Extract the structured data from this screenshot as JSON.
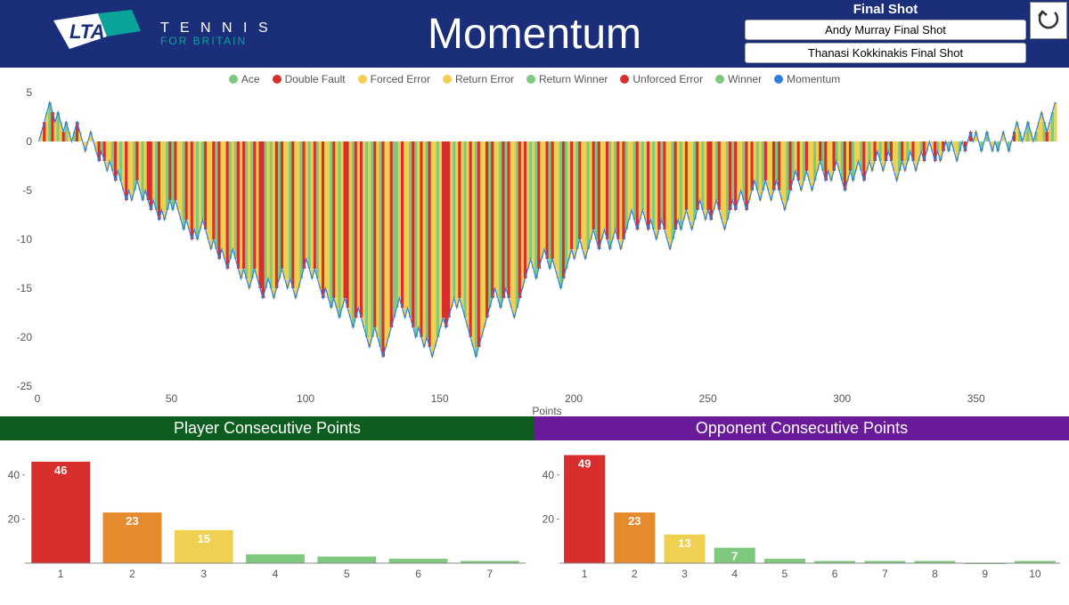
{
  "header": {
    "logo_tennis": "T E N N I S",
    "logo_britain": "FOR BRITAIN",
    "title": "Momentum",
    "final_shot_header": "Final Shot",
    "final_shot_buttons": [
      "Andy Murray Final Shot",
      "Thanasi Kokkinakis Final Shot"
    ]
  },
  "legend": {
    "items": [
      {
        "label": "Ace",
        "color": "#7fc97f"
      },
      {
        "label": "Double Fault",
        "color": "#d92e2e"
      },
      {
        "label": "Forced Error",
        "color": "#f0d050"
      },
      {
        "label": "Return Error",
        "color": "#f0d050"
      },
      {
        "label": "Return Winner",
        "color": "#7fc97f"
      },
      {
        "label": "Unforced Error",
        "color": "#d92e2e"
      },
      {
        "label": "Winner",
        "color": "#7fc97f"
      },
      {
        "label": "Momentum",
        "color": "#2e7fd9"
      }
    ]
  },
  "momentum_chart": {
    "type": "line_with_bars",
    "ylim": [
      -25,
      5
    ],
    "ytick_step": 5,
    "xlim": [
      0,
      380
    ],
    "xtick_step": 50,
    "x_title": "Points",
    "background_color": "#ffffff",
    "line_color": "#2e7fd9",
    "line_width": 1.2,
    "bar_palette": {
      "g": "#7fc97f",
      "y": "#f0d050",
      "r": "#d92e2e"
    },
    "axis_color": "#888888",
    "label_color": "#555555",
    "label_fontsize": 12,
    "momentum": [
      0,
      1,
      2,
      3,
      4,
      3,
      2,
      3,
      2,
      1,
      2,
      1,
      0,
      1,
      2,
      1,
      0,
      -1,
      0,
      1,
      0,
      -1,
      -2,
      -1,
      -2,
      -3,
      -2,
      -3,
      -4,
      -3,
      -4,
      -5,
      -6,
      -5,
      -6,
      -5,
      -4,
      -5,
      -6,
      -5,
      -6,
      -7,
      -6,
      -7,
      -8,
      -7,
      -8,
      -7,
      -6,
      -7,
      -6,
      -7,
      -8,
      -9,
      -8,
      -9,
      -10,
      -9,
      -10,
      -9,
      -8,
      -9,
      -10,
      -11,
      -10,
      -11,
      -12,
      -11,
      -12,
      -13,
      -12,
      -11,
      -12,
      -13,
      -14,
      -13,
      -14,
      -15,
      -14,
      -13,
      -14,
      -15,
      -16,
      -15,
      -14,
      -15,
      -16,
      -15,
      -14,
      -13,
      -14,
      -15,
      -14,
      -15,
      -16,
      -15,
      -14,
      -13,
      -12,
      -13,
      -14,
      -13,
      -14,
      -15,
      -16,
      -15,
      -16,
      -17,
      -16,
      -17,
      -18,
      -17,
      -16,
      -17,
      -18,
      -19,
      -18,
      -17,
      -18,
      -19,
      -20,
      -21,
      -20,
      -19,
      -20,
      -21,
      -22,
      -21,
      -20,
      -19,
      -18,
      -17,
      -16,
      -17,
      -18,
      -17,
      -18,
      -19,
      -20,
      -19,
      -20,
      -21,
      -20,
      -21,
      -22,
      -21,
      -20,
      -19,
      -18,
      -19,
      -18,
      -17,
      -16,
      -17,
      -16,
      -17,
      -18,
      -19,
      -20,
      -21,
      -22,
      -21,
      -20,
      -19,
      -18,
      -17,
      -16,
      -15,
      -16,
      -17,
      -16,
      -15,
      -16,
      -17,
      -18,
      -17,
      -16,
      -15,
      -14,
      -13,
      -12,
      -13,
      -14,
      -13,
      -12,
      -11,
      -12,
      -13,
      -12,
      -13,
      -14,
      -15,
      -14,
      -13,
      -12,
      -11,
      -12,
      -11,
      -10,
      -11,
      -12,
      -11,
      -10,
      -9,
      -10,
      -11,
      -10,
      -9,
      -10,
      -11,
      -10,
      -9,
      -10,
      -11,
      -10,
      -9,
      -8,
      -7,
      -8,
      -9,
      -8,
      -7,
      -8,
      -9,
      -8,
      -9,
      -10,
      -9,
      -8,
      -9,
      -10,
      -11,
      -10,
      -9,
      -8,
      -9,
      -8,
      -7,
      -8,
      -9,
      -8,
      -7,
      -6,
      -7,
      -8,
      -7,
      -8,
      -7,
      -6,
      -7,
      -8,
      -9,
      -8,
      -7,
      -6,
      -7,
      -6,
      -5,
      -6,
      -7,
      -6,
      -5,
      -4,
      -5,
      -6,
      -5,
      -4,
      -5,
      -6,
      -5,
      -4,
      -5,
      -6,
      -7,
      -6,
      -5,
      -4,
      -3,
      -4,
      -5,
      -4,
      -3,
      -4,
      -5,
      -4,
      -3,
      -2,
      -3,
      -4,
      -3,
      -4,
      -3,
      -2,
      -3,
      -4,
      -5,
      -4,
      -3,
      -4,
      -3,
      -2,
      -3,
      -4,
      -3,
      -2,
      -3,
      -2,
      -1,
      -2,
      -3,
      -2,
      -1,
      -2,
      -3,
      -4,
      -3,
      -2,
      -3,
      -2,
      -1,
      -2,
      -3,
      -2,
      -1,
      -2,
      -1,
      0,
      -1,
      -2,
      -1,
      -2,
      -1,
      0,
      -1,
      0,
      -1,
      -2,
      -1,
      0,
      -1,
      0,
      1,
      0,
      1,
      0,
      -1,
      0,
      1,
      0,
      -1,
      0,
      -1,
      0,
      1,
      0,
      -1,
      0,
      1,
      2,
      1,
      0,
      1,
      2,
      1,
      0,
      1,
      2,
      3,
      2,
      1,
      2,
      3,
      4
    ],
    "bar_colors_seq": "gyrygrygyrgyygrygyrygyrgryygrygyryygrygyrrygryygrgryygryrygygryyrgryyrgygryrgygryrrgygyrgryygryygrygyrgyryygrygyrrygryrygygrygryyrggyryygrgyrygryygyrrrygyrygyrygryyrgryygrgryygryrygygryyrgryygrgyrygryygyrgryyrgygryrgyygrygyrygyrgryygrygyryygrygyrrygryygrgryygryrygygryyrgryygrgyrygryygyrgryyrgygryrgyygrygyrygyrgryygrygyryygrygyrgyrygryygyrgryyrgygryrgyyg"
  },
  "sections": {
    "player_title": "Player Consecutive Points",
    "opponent_title": "Opponent Consecutive Points"
  },
  "player_bars": {
    "type": "bar",
    "categories": [
      1,
      2,
      3,
      4,
      5,
      6,
      7
    ],
    "values": [
      46,
      23,
      15,
      4,
      3,
      2,
      1
    ],
    "bar_colors": [
      "#d92e2e",
      "#e68a2e",
      "#f0d050",
      "#7fc97f",
      "#7fc97f",
      "#7fc97f",
      "#7fc97f"
    ],
    "ylim": [
      0,
      50
    ],
    "yticks": [
      20,
      40
    ],
    "label_fontsize": 13
  },
  "opponent_bars": {
    "type": "bar",
    "categories": [
      1,
      2,
      3,
      4,
      5,
      6,
      7,
      8,
      9,
      10
    ],
    "values": [
      49,
      23,
      13,
      7,
      2,
      1,
      1,
      1,
      0,
      1
    ],
    "bar_colors": [
      "#d92e2e",
      "#e68a2e",
      "#f0d050",
      "#7fc97f",
      "#7fc97f",
      "#7fc97f",
      "#7fc97f",
      "#7fc97f",
      "#7fc97f",
      "#7fc97f"
    ],
    "ylim": [
      0,
      50
    ],
    "yticks": [
      20,
      40
    ],
    "label_fontsize": 13
  }
}
